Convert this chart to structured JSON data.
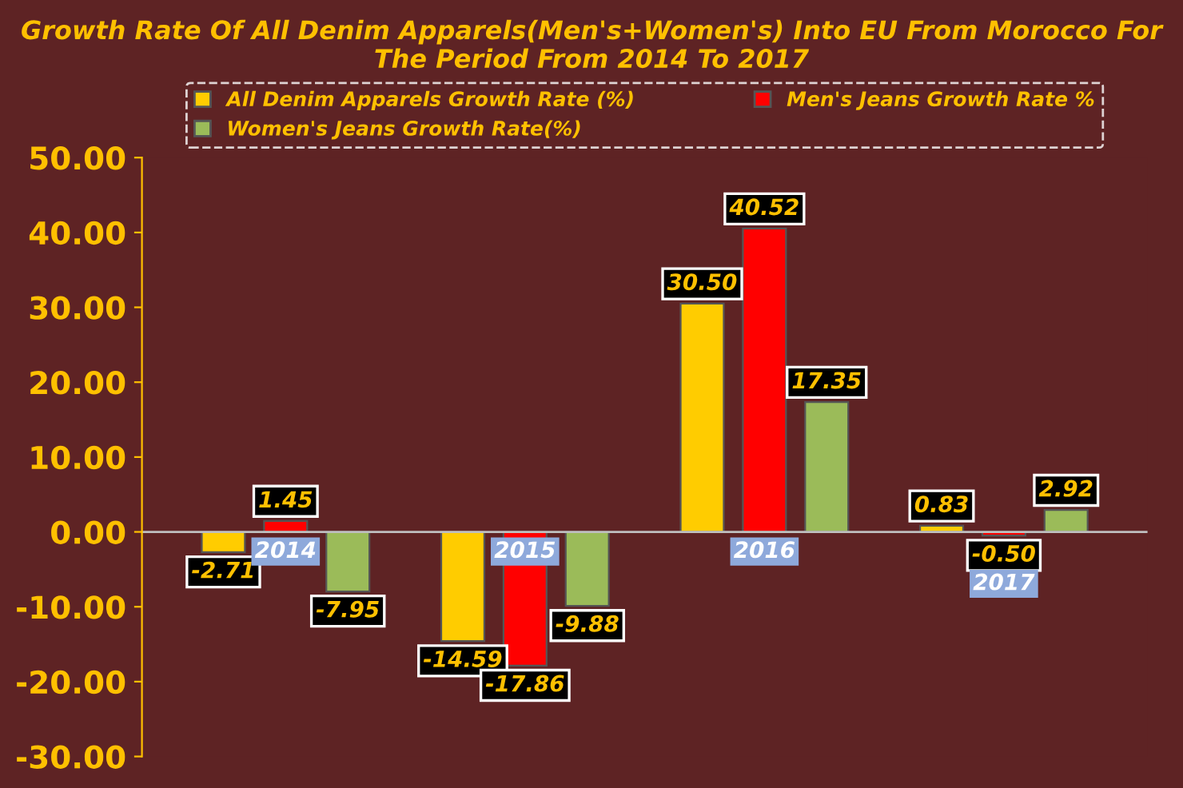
{
  "chart_data": {
    "type": "bar",
    "title": "Growth Rate Of All Denim Apparels(Men's+Women's) Into EU From Morocco For The Period From 2014 To 2017",
    "categories": [
      "2014",
      "2015",
      "2016",
      "2017"
    ],
    "series": [
      {
        "name": "All Denim Apparels Growth Rate (%)",
        "color": "#ffcc00",
        "values": [
          -2.71,
          -14.59,
          30.5,
          0.83
        ],
        "value_labels": [
          "-2.71",
          "-14.59",
          "30.50",
          "0.83"
        ]
      },
      {
        "name": "Men's Jeans Growth Rate %",
        "color": "#ff0000",
        "values": [
          1.45,
          -17.86,
          40.52,
          -0.5
        ],
        "value_labels": [
          "1.45",
          "-17.86",
          "40.52",
          "-0.50"
        ]
      },
      {
        "name": "Women's Jeans Growth Rate(%)",
        "color": "#9bbb59",
        "values": [
          -7.95,
          -9.88,
          17.35,
          2.92
        ],
        "value_labels": [
          "-7.95",
          "-9.88",
          "17.35",
          "2.92"
        ]
      }
    ],
    "ylim": [
      -30,
      50
    ],
    "yticks": [
      {
        "value": -30,
        "label": "-30.00"
      },
      {
        "value": -20,
        "label": "-20.00"
      },
      {
        "value": -10,
        "label": "-10.00"
      },
      {
        "value": 0,
        "label": "0.00"
      },
      {
        "value": 10,
        "label": "10.00"
      },
      {
        "value": 20,
        "label": "20.00"
      },
      {
        "value": 30,
        "label": "30.00"
      },
      {
        "value": 40,
        "label": "40.00"
      },
      {
        "value": 50,
        "label": "50.00"
      }
    ],
    "legend": "top",
    "grid": false
  }
}
